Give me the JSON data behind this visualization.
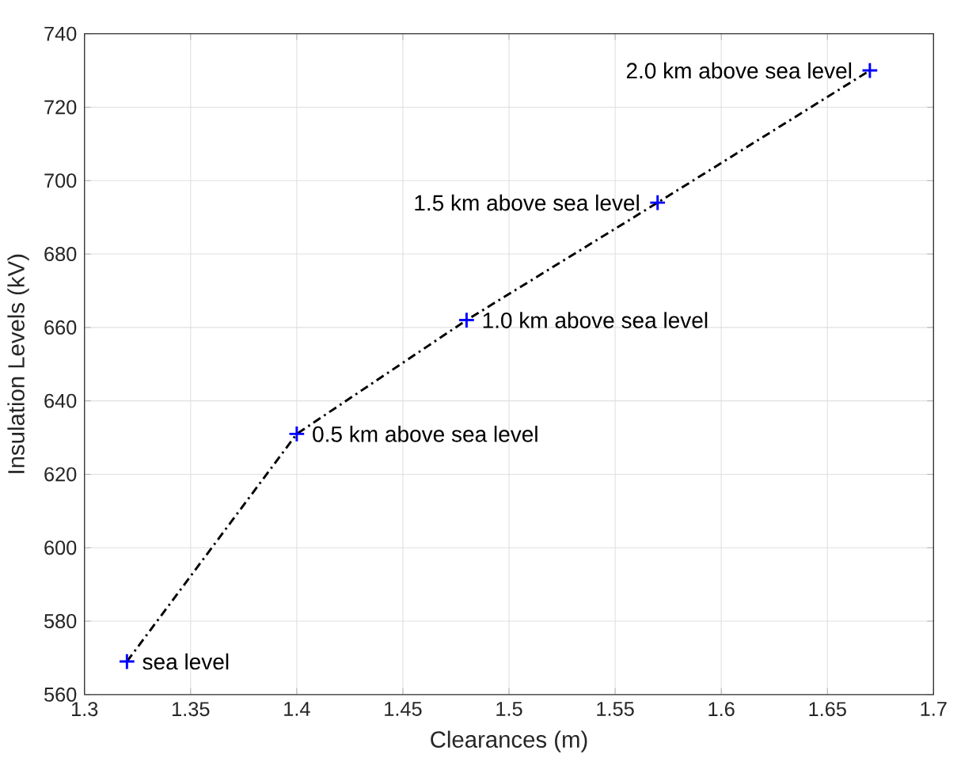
{
  "chart_data": {
    "type": "line",
    "xlabel": "Clearances (m)",
    "ylabel": "Insulation Levels (kV)",
    "x": [
      1.32,
      1.4,
      1.48,
      1.57,
      1.67
    ],
    "series": [
      {
        "color": "#000000",
        "values": [
          569,
          631,
          662,
          694,
          730
        ],
        "marker": "none",
        "line_style": "dashdot"
      },
      {
        "type": "scatter",
        "color": "#0000ff",
        "values": [
          569,
          631,
          662,
          694,
          730
        ],
        "marker": "cross"
      }
    ],
    "xlim": [
      1.3,
      1.7
    ],
    "xticks": [
      1.3,
      1.35,
      1.4,
      1.45,
      1.5,
      1.55,
      1.6,
      1.65,
      1.7
    ],
    "ylim": [
      560,
      740
    ],
    "yticks": [
      560,
      580,
      600,
      620,
      640,
      660,
      680,
      700,
      720,
      740
    ],
    "grid": true,
    "annotations": [
      {
        "text": "sea level",
        "x": 1.32,
        "y": 569
      },
      {
        "text": "0.5 km above sea level",
        "x": 1.4,
        "y": 631
      },
      {
        "text": "1.0 km above sea level",
        "x": 1.48,
        "y": 662
      },
      {
        "text": "1.5 km above sea level",
        "x": 1.57,
        "y": 694
      },
      {
        "text": "2.0 km above sea level",
        "x": 1.67,
        "y": 730
      }
    ]
  }
}
